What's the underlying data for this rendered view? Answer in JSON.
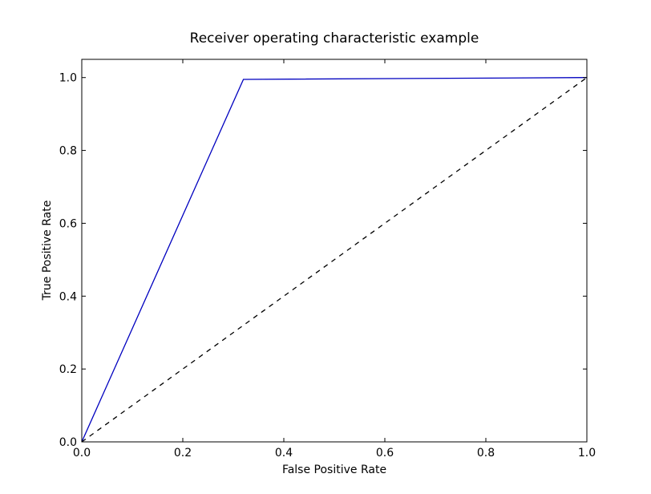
{
  "chart_data": {
    "type": "line",
    "title": "Receiver operating characteristic example",
    "xlabel": "False Positive Rate",
    "ylabel": "True Positive Rate",
    "xlim": [
      0.0,
      1.0
    ],
    "ylim": [
      0.0,
      1.05
    ],
    "xticks": [
      0.0,
      0.2,
      0.4,
      0.6,
      0.8,
      1.0
    ],
    "yticks": [
      0.0,
      0.2,
      0.4,
      0.6,
      0.8,
      1.0
    ],
    "xtick_labels": [
      "0.0",
      "0.2",
      "0.4",
      "0.6",
      "0.8",
      "1.0"
    ],
    "ytick_labels": [
      "0.0",
      "0.2",
      "0.4",
      "0.6",
      "0.8",
      "1.0"
    ],
    "grid": false,
    "series": [
      {
        "x": [
          0.0,
          0.32,
          1.0
        ],
        "y": [
          0.0,
          0.995,
          1.0
        ],
        "color": "#0000bf",
        "style": "solid"
      },
      {
        "x": [
          0.0,
          1.0
        ],
        "y": [
          0.0,
          1.0
        ],
        "color": "#000000",
        "style": "dashed"
      }
    ]
  }
}
